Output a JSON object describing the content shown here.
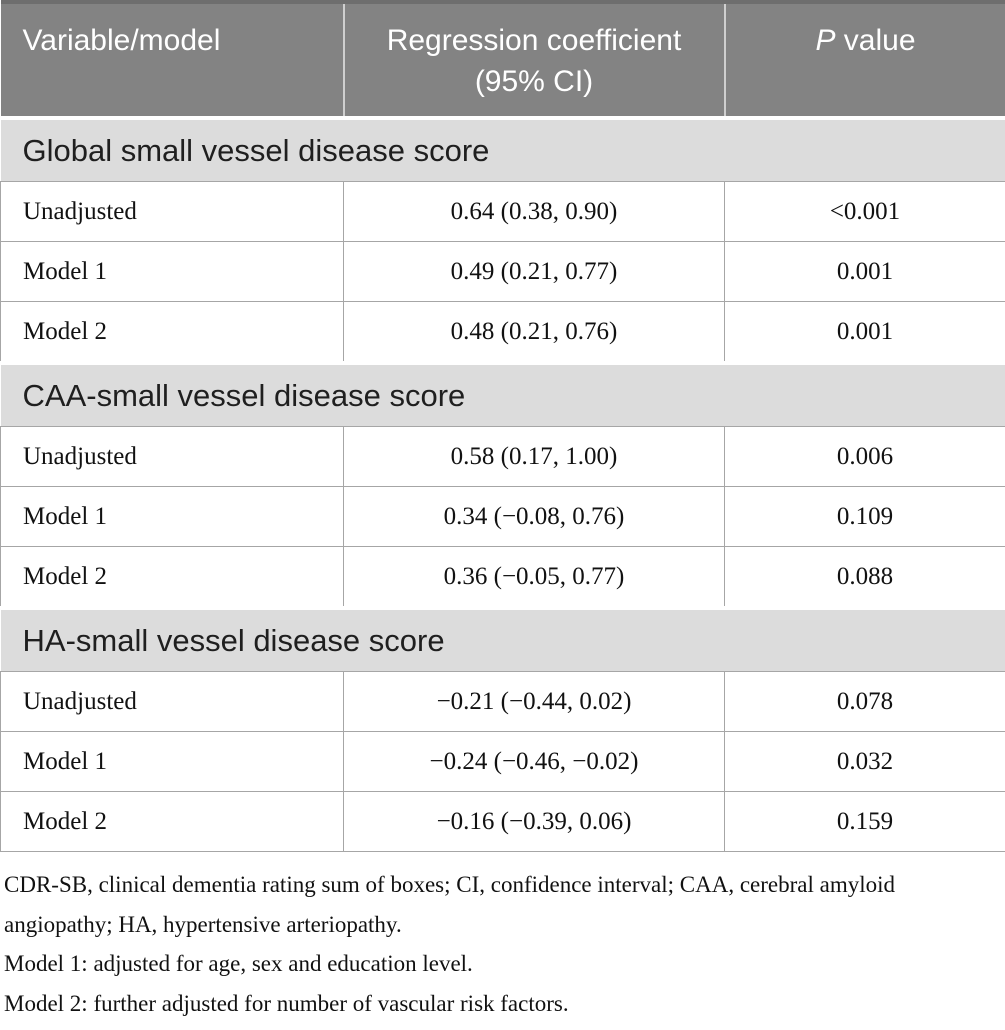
{
  "table": {
    "header": {
      "variable": "Variable/model",
      "coefficient": "Regression coefficient (95% CI)",
      "p_italic": "P",
      "p_rest": " value"
    },
    "sections": [
      {
        "title": "Global small vessel disease score",
        "rows": [
          {
            "label": "Unadjusted",
            "coef": "0.64 (0.38, 0.90)",
            "p": "<0.001"
          },
          {
            "label": "Model 1",
            "coef": "0.49 (0.21, 0.77)",
            "p": "0.001"
          },
          {
            "label": "Model 2",
            "coef": "0.48 (0.21, 0.76)",
            "p": "0.001"
          }
        ]
      },
      {
        "title": "CAA-small vessel disease score",
        "rows": [
          {
            "label": "Unadjusted",
            "coef": "0.58 (0.17, 1.00)",
            "p": "0.006"
          },
          {
            "label": "Model 1",
            "coef": "0.34 (−0.08, 0.76)",
            "p": "0.109"
          },
          {
            "label": "Model 2",
            "coef": "0.36 (−0.05, 0.77)",
            "p": "0.088"
          }
        ]
      },
      {
        "title": "HA-small vessel disease score",
        "rows": [
          {
            "label": "Unadjusted",
            "coef": "−0.21 (−0.44, 0.02)",
            "p": "0.078"
          },
          {
            "label": "Model 1",
            "coef": "−0.24 (−0.46, −0.02)",
            "p": "0.032"
          },
          {
            "label": "Model 2",
            "coef": "−0.16 (−0.39, 0.06)",
            "p": "0.159"
          }
        ]
      }
    ]
  },
  "footnotes": [
    "CDR-SB, clinical dementia rating sum of boxes; CI, confidence interval; CAA, cerebral amyloid angiopathy; HA, hypertensive arteriopathy.",
    "Model 1: adjusted for age, sex and education level.",
    "Model 2: further adjusted for number of vascular risk factors."
  ],
  "colors": {
    "header_background": "#838383",
    "header_top_strip": "#6e6e6e",
    "header_text": "#ffffff",
    "section_background": "#dcdcdc",
    "body_border": "#a6a6a6",
    "text": "#111111"
  }
}
